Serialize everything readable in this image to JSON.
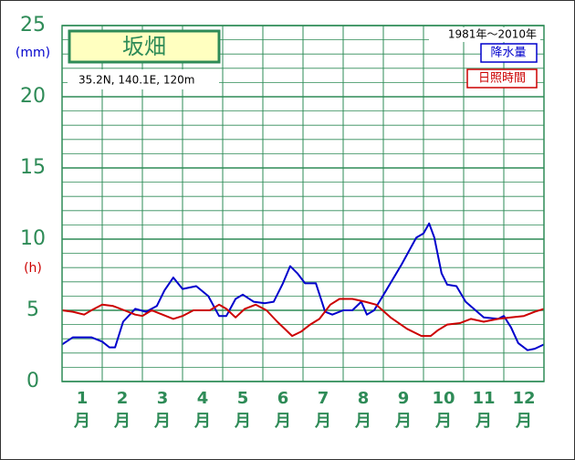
{
  "chart_data": {
    "type": "line",
    "title": "坂畑",
    "location": "35.2N,  140.1E,  120m",
    "period": "1981年〜2010年",
    "y_unit_left": "(mm)",
    "y_unit_right": "(h)",
    "categories": [
      "1",
      "2",
      "3",
      "4",
      "5",
      "6",
      "7",
      "8",
      "9",
      "10",
      "11",
      "12"
    ],
    "category_unit": "月",
    "xlim": [
      0,
      12
    ],
    "xticks": [
      0,
      1,
      2,
      3,
      4,
      5,
      6,
      7,
      8,
      9,
      10,
      11,
      12
    ],
    "ylim": [
      0,
      25
    ],
    "yticks": [
      0,
      5,
      10,
      15,
      20,
      25
    ],
    "minor_yticks": [
      1,
      2,
      3,
      4,
      6,
      7,
      8,
      9,
      11,
      12,
      13,
      14,
      16,
      17,
      18,
      19,
      21,
      22,
      23,
      24
    ],
    "grid": true,
    "legend": "top-right",
    "series": [
      {
        "name": "降水量",
        "color": "#0000cc",
        "x": [
          0,
          0.27,
          0.73,
          1,
          1.18,
          1.32,
          1.52,
          1.82,
          2.09,
          2.36,
          2.55,
          2.77,
          3,
          3.34,
          3.64,
          3.91,
          4.09,
          4.32,
          4.5,
          4.77,
          5.05,
          5.27,
          5.5,
          5.68,
          5.86,
          6.05,
          6.32,
          6.55,
          6.73,
          7,
          7.23,
          7.45,
          7.59,
          7.77,
          8.05,
          8.45,
          8.82,
          9,
          9.14,
          9.27,
          9.45,
          9.59,
          9.82,
          10.05,
          10.5,
          10.86,
          11,
          11.18,
          11.36,
          11.59,
          11.77,
          12
        ],
        "values": [
          2.6,
          3.1,
          3.1,
          2.8,
          2.4,
          2.4,
          4.2,
          5.1,
          4.9,
          5.3,
          6.4,
          7.3,
          6.5,
          6.7,
          6.0,
          4.6,
          4.6,
          5.8,
          6.1,
          5.6,
          5.5,
          5.6,
          6.9,
          8.1,
          7.6,
          6.9,
          6.9,
          4.9,
          4.7,
          5.0,
          5.0,
          5.6,
          4.7,
          5.0,
          6.3,
          8.2,
          10.1,
          10.4,
          11.1,
          10.1,
          7.6,
          6.8,
          6.7,
          5.6,
          4.5,
          4.4,
          4.6,
          3.8,
          2.7,
          2.2,
          2.3,
          2.6
        ]
      },
      {
        "name": "日照時間",
        "color": "#cc0000",
        "x": [
          0,
          0.27,
          0.55,
          0.73,
          1,
          1.27,
          1.55,
          1.82,
          2,
          2.23,
          2.5,
          2.77,
          3,
          3.27,
          3.68,
          3.91,
          4.09,
          4.32,
          4.55,
          4.82,
          5.09,
          5.36,
          5.73,
          5.95,
          6.18,
          6.41,
          6.68,
          6.91,
          7.23,
          7.55,
          7.82,
          8.18,
          8.59,
          8.95,
          9.18,
          9.36,
          9.59,
          9.91,
          10.18,
          10.5,
          10.86,
          11.18,
          11.5,
          11.77,
          12
        ],
        "values": [
          5.0,
          4.9,
          4.7,
          5.0,
          5.4,
          5.3,
          5.0,
          4.7,
          4.6,
          5.0,
          4.7,
          4.4,
          4.6,
          5.0,
          5.0,
          5.4,
          5.1,
          4.5,
          5.1,
          5.4,
          5.0,
          4.2,
          3.2,
          3.5,
          4.0,
          4.4,
          5.4,
          5.8,
          5.8,
          5.6,
          5.4,
          4.5,
          3.7,
          3.2,
          3.2,
          3.6,
          4.0,
          4.1,
          4.4,
          4.2,
          4.4,
          4.5,
          4.6,
          4.9,
          5.1
        ]
      }
    ]
  }
}
